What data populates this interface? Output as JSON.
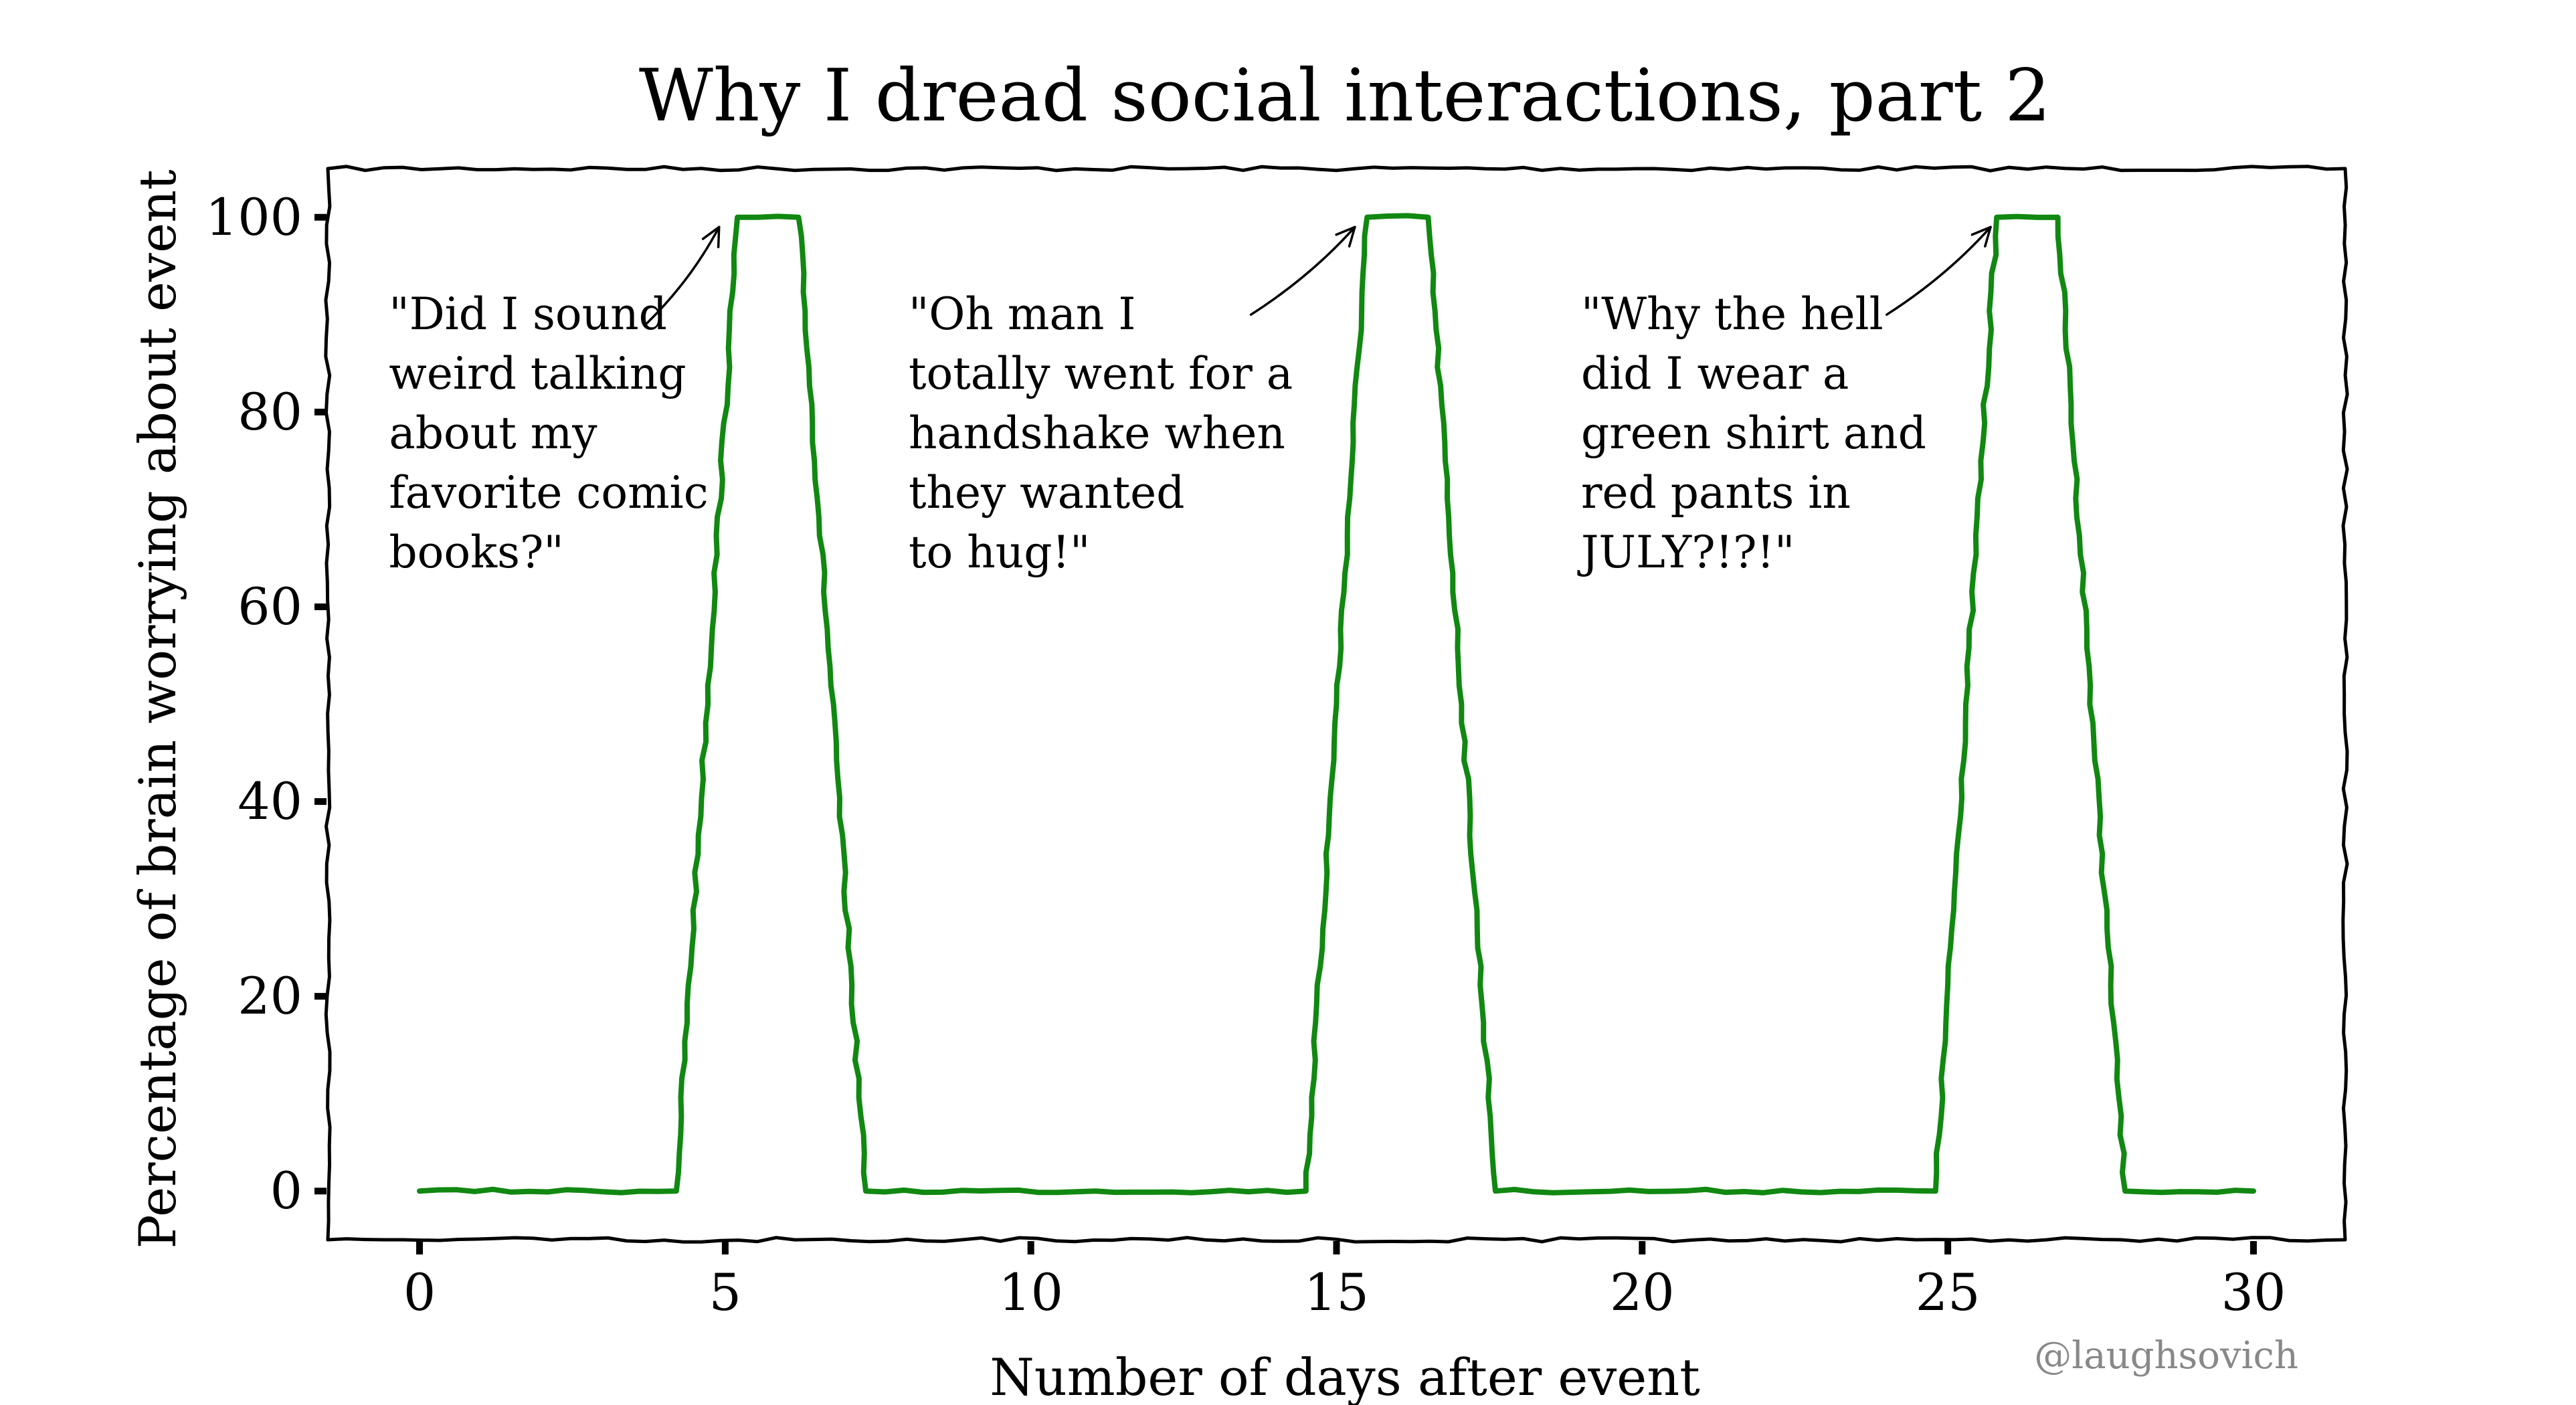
{
  "chart_data": {
    "type": "line",
    "title": "Why I dread social interactions, part 2",
    "xlabel": "Number of days after event",
    "ylabel": "Percentage of brain worrying about event",
    "xlim": [
      -1.5,
      31.5
    ],
    "ylim": [
      -5,
      105
    ],
    "x_ticks": [
      0,
      5,
      10,
      15,
      20,
      25,
      30
    ],
    "y_ticks": [
      0,
      20,
      40,
      60,
      80,
      100
    ],
    "grid": false,
    "line_color": "#118811",
    "series": [
      {
        "x": [
          0,
          4.2,
          5.2,
          6.2,
          7.3,
          14.5,
          15.5,
          16.5,
          17.6,
          24.8,
          25.8,
          26.8,
          27.9,
          30
        ],
        "y": [
          0,
          0,
          100,
          100,
          0,
          0,
          100,
          100,
          0,
          0,
          100,
          100,
          0,
          0
        ]
      }
    ],
    "annotations": [
      {
        "text_lines": [
          "\"Did I sound",
          "weird talking",
          "about my",
          "favorite comic",
          "books?\""
        ],
        "text_x": -0.5,
        "text_y": 88.5,
        "arrow_from": [
          3.7,
          89
        ],
        "arrow_to": [
          4.9,
          99
        ]
      },
      {
        "text_lines": [
          "\"Oh man I",
          "totally went for a",
          "handshake when",
          "they wanted",
          "to hug!\""
        ],
        "text_x": 8,
        "text_y": 88.5,
        "arrow_from": [
          13.6,
          90
        ],
        "arrow_to": [
          15.3,
          99
        ]
      },
      {
        "text_lines": [
          "\"Why the hell",
          "did I wear a",
          "green shirt and",
          "red pants in",
          "JULY?!?!\""
        ],
        "text_x": 19,
        "text_y": 88.5,
        "arrow_from": [
          24,
          90
        ],
        "arrow_to": [
          25.7,
          99
        ]
      }
    ]
  },
  "watermark": "@laughsovich"
}
